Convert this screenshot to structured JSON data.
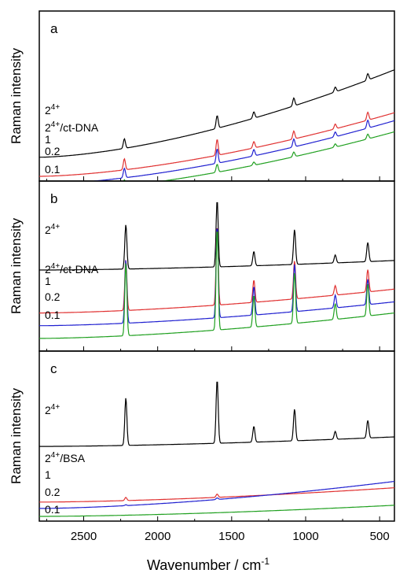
{
  "figure": {
    "xlabel": "Wavenumber / cm",
    "xlabel_sup": "-1",
    "ylabel": "Raman intensity",
    "xticks": [
      "2500",
      "2000",
      "1500",
      "1000",
      "500"
    ]
  },
  "chart_data": [
    {
      "type": "line",
      "panel": "a",
      "xlabel": "Wavenumber / cm-1",
      "ylabel": "Raman intensity",
      "xlim": [
        2800,
        400
      ],
      "x_reversed": true,
      "series_labels": [
        {
          "text": "2",
          "sup": "4+"
        },
        {
          "text": "2",
          "sup": "4+",
          "suffix": "/ct-DNA"
        },
        {
          "text": "1"
        },
        {
          "text": "0.2"
        },
        {
          "text": "0.1"
        }
      ],
      "series": [
        {
          "color": "#000000",
          "base": 0.12,
          "slope": 0.55,
          "peaks": [
            [
              2225,
              0.06
            ],
            [
              1598,
              0.08
            ],
            [
              1350,
              0.04
            ],
            [
              1080,
              0.05
            ],
            [
              800,
              0.03
            ],
            [
              580,
              0.04
            ]
          ]
        },
        {
          "color": "#e03030",
          "base": 0.0,
          "slope": 0.4,
          "peaks": [
            [
              2225,
              0.07
            ],
            [
              1598,
              0.1
            ],
            [
              1350,
              0.04
            ],
            [
              1080,
              0.05
            ],
            [
              800,
              0.03
            ],
            [
              580,
              0.05
            ]
          ]
        },
        {
          "color": "#2020d0",
          "base": -0.05,
          "slope": 0.4,
          "peaks": [
            [
              2225,
              0.06
            ],
            [
              1598,
              0.09
            ],
            [
              1350,
              0.04
            ],
            [
              1080,
              0.05
            ],
            [
              800,
              0.03
            ],
            [
              580,
              0.05
            ]
          ]
        },
        {
          "color": "#20a020",
          "base": -0.1,
          "slope": 0.38,
          "peaks": [
            [
              2225,
              0.04
            ],
            [
              1598,
              0.05
            ],
            [
              1350,
              0.02
            ],
            [
              1080,
              0.03
            ],
            [
              800,
              0.02
            ],
            [
              580,
              0.03
            ]
          ]
        }
      ]
    },
    {
      "type": "line",
      "panel": "b",
      "xlabel": "Wavenumber / cm-1",
      "ylabel": "Raman intensity",
      "xlim": [
        2800,
        400
      ],
      "x_reversed": true,
      "series_labels": [
        {
          "text": "2",
          "sup": "4+"
        },
        {
          "text": "2",
          "sup": "4+",
          "suffix": "/ct-DNA"
        },
        {
          "text": "1"
        },
        {
          "text": "0.2"
        },
        {
          "text": "0.1"
        }
      ],
      "series": [
        {
          "color": "#000000",
          "base": 0.48,
          "slope": 0.06,
          "peaks": [
            [
              2215,
              0.28
            ],
            [
              1598,
              0.42
            ],
            [
              1350,
              0.09
            ],
            [
              1075,
              0.22
            ],
            [
              800,
              0.05
            ],
            [
              580,
              0.12
            ]
          ]
        },
        {
          "color": "#e03030",
          "base": 0.21,
          "slope": 0.15,
          "peaks": [
            [
              2215,
              0.32
            ],
            [
              1598,
              0.5
            ],
            [
              1350,
              0.14
            ],
            [
              1075,
              0.24
            ],
            [
              800,
              0.06
            ],
            [
              580,
              0.14
            ]
          ]
        },
        {
          "color": "#2020d0",
          "base": 0.13,
          "slope": 0.15,
          "peaks": [
            [
              2215,
              0.4
            ],
            [
              1598,
              0.58
            ],
            [
              1350,
              0.18
            ],
            [
              1075,
              0.3
            ],
            [
              800,
              0.08
            ],
            [
              580,
              0.16
            ]
          ]
        },
        {
          "color": "#20a020",
          "base": 0.05,
          "slope": 0.16,
          "peaks": [
            [
              2215,
              0.46
            ],
            [
              1598,
              0.64
            ],
            [
              1350,
              0.2
            ],
            [
              1075,
              0.32
            ],
            [
              800,
              0.1
            ],
            [
              580,
              0.2
            ]
          ]
        }
      ]
    },
    {
      "type": "line",
      "panel": "c",
      "xlabel": "Wavenumber / cm-1",
      "ylabel": "Raman intensity",
      "xlim": [
        2800,
        400
      ],
      "x_reversed": true,
      "series_labels": [
        {
          "text": "2",
          "sup": "4+"
        },
        {
          "text": "2",
          "sup": "4+",
          "suffix": "/BSA"
        },
        {
          "text": "1"
        },
        {
          "text": "0.2"
        },
        {
          "text": "0.1"
        }
      ],
      "series": [
        {
          "color": "#000000",
          "base": 0.44,
          "slope": 0.06,
          "peaks": [
            [
              2215,
              0.3
            ],
            [
              1598,
              0.4
            ],
            [
              1350,
              0.1
            ],
            [
              1075,
              0.2
            ],
            [
              800,
              0.05
            ],
            [
              580,
              0.11
            ]
          ]
        },
        {
          "color": "#e03030",
          "base": 0.09,
          "slope": 0.09,
          "peaks": [
            [
              2215,
              0.02
            ],
            [
              1598,
              0.02
            ]
          ]
        },
        {
          "color": "#2020d0",
          "base": 0.05,
          "slope": 0.17,
          "peaks": [
            [
              2215,
              0.005
            ],
            [
              1598,
              0.01
            ]
          ]
        },
        {
          "color": "#20a020",
          "base": 0.0,
          "slope": 0.07,
          "peaks": []
        }
      ]
    }
  ]
}
